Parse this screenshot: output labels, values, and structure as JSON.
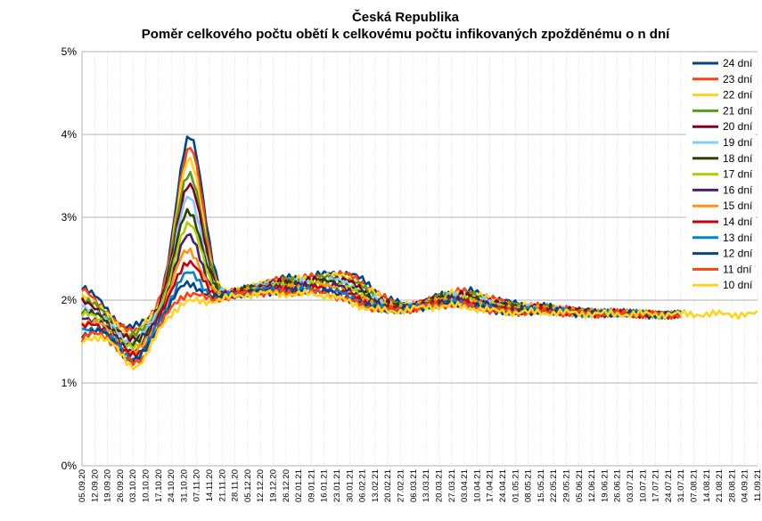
{
  "chart_data": {
    "type": "line",
    "title": "Česká Republika",
    "subtitle": "Poměr celkového počtu obětí k celkovému počtu infikovaných zpožděnému o n dní",
    "xlabel": "",
    "ylabel": "",
    "ylim": [
      0,
      5
    ],
    "y_unit": "%",
    "y_ticks": [
      "0%",
      "1%",
      "2%",
      "3%",
      "4%",
      "5%"
    ],
    "x_tick_labels": [
      "05.09.20",
      "12.09.20",
      "19.09.20",
      "26.09.20",
      "03.10.20",
      "10.10.20",
      "17.10.20",
      "24.10.20",
      "31.10.20",
      "07.11.20",
      "14.11.20",
      "21.11.20",
      "28.11.20",
      "05.12.20",
      "12.12.20",
      "19.12.20",
      "26.12.20",
      "02.01.21",
      "09.01.21",
      "16.01.21",
      "23.01.21",
      "30.01.21",
      "06.02.21",
      "13.02.21",
      "20.02.21",
      "27.02.21",
      "06.03.21",
      "13.03.21",
      "20.03.21",
      "27.03.21",
      "03.04.21",
      "10.04.21",
      "17.04.21",
      "24.04.21",
      "01.05.21",
      "08.05.21",
      "15.05.21",
      "22.05.21",
      "29.05.21",
      "05.06.21",
      "12.06.21",
      "19.06.21",
      "26.06.21",
      "03.07.21",
      "10.07.21",
      "17.07.21",
      "24.07.21",
      "31.07.21",
      "07.08.21",
      "14.08.21",
      "21.08.21",
      "28.08.21",
      "04.09.21",
      "11.09.21"
    ],
    "grid": true,
    "legend_position": "top-right",
    "series": [
      {
        "name": "24 dní",
        "color": "#004586",
        "peak": 3.88,
        "end_index": 46
      },
      {
        "name": "23 dní",
        "color": "#ff420e",
        "peak": 3.72,
        "end_index": 46
      },
      {
        "name": "22 dní",
        "color": "#ffd320",
        "peak": 3.57,
        "end_index": 46
      },
      {
        "name": "21 dní",
        "color": "#579d1c",
        "peak": 3.42,
        "end_index": 46
      },
      {
        "name": "20 dní",
        "color": "#7e0021",
        "peak": 3.28,
        "end_index": 46
      },
      {
        "name": "19 dní",
        "color": "#83caff",
        "peak": 3.12,
        "end_index": 46
      },
      {
        "name": "18 dní",
        "color": "#314004",
        "peak": 2.97,
        "end_index": 46
      },
      {
        "name": "17 dní",
        "color": "#aecf00",
        "peak": 2.82,
        "end_index": 47
      },
      {
        "name": "16 dní",
        "color": "#4b1f6f",
        "peak": 2.66,
        "end_index": 47
      },
      {
        "name": "15 dní",
        "color": "#ff950e",
        "peak": 2.5,
        "end_index": 47
      },
      {
        "name": "14 dní",
        "color": "#c5000b",
        "peak": 2.36,
        "end_index": 47
      },
      {
        "name": "13 dní",
        "color": "#0084d1",
        "peak": 2.22,
        "end_index": 47
      },
      {
        "name": "12 dní",
        "color": "#004586",
        "peak": 2.1,
        "end_index": 47
      },
      {
        "name": "11 dní",
        "color": "#ff420e",
        "peak": 1.98,
        "end_index": 47
      },
      {
        "name": "10 dní",
        "color": "#ffd320",
        "peak": 1.88,
        "end_index": 53
      }
    ]
  }
}
